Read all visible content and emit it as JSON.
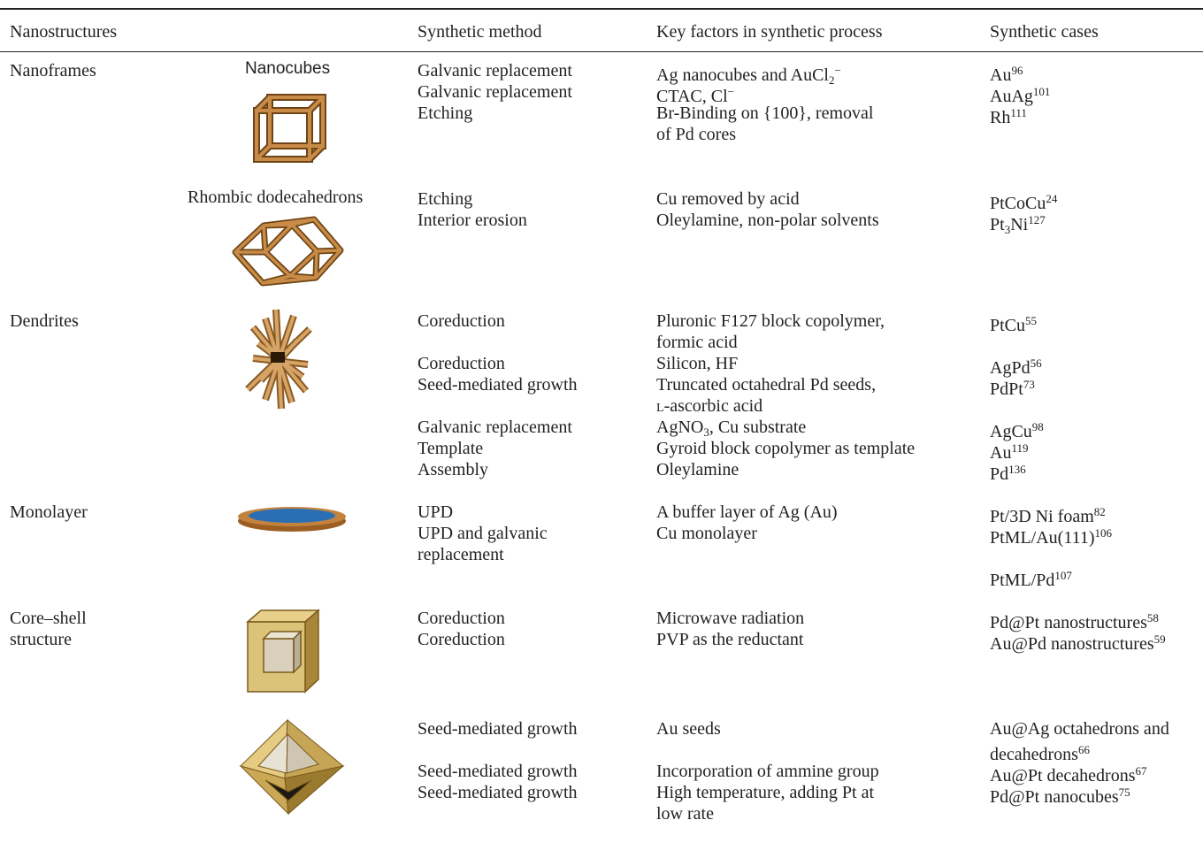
{
  "header": [
    "Nanostructures",
    "Synthetic method",
    "Key factors in synthetic process",
    "Synthetic cases"
  ],
  "sections": [
    [
      "Nanoframes"
    ],
    [
      "Dendrites"
    ],
    [
      "Monolayer"
    ],
    [
      "Core–shell",
      "structure"
    ]
  ],
  "shapes": [
    "Nanocubes",
    "Rhombic dodecahedrons"
  ],
  "rows": [
    {
      "method": [
        [
          "Galvanic replacement"
        ]
      ],
      "factors": [
        [
          "Ag nanocubes and AuCl",
          {
            "sub": "2"
          },
          {
            "sup": "−"
          }
        ]
      ],
      "cases": [
        [
          "Au",
          {
            "sup": "96"
          }
        ]
      ]
    },
    {
      "method": [
        [
          "Galvanic replacement"
        ]
      ],
      "factors": [
        [
          "CTAC, Cl",
          {
            "sup": "−"
          }
        ]
      ],
      "cases": [
        [
          "AuAg",
          {
            "sup": "101"
          }
        ]
      ]
    },
    {
      "method": [
        [
          "Etching"
        ]
      ],
      "factors": [
        [
          "Br-Binding on {100}, removal"
        ],
        [
          "of Pd cores"
        ]
      ],
      "cases": [
        [
          "Rh",
          {
            "sup": "111"
          }
        ]
      ]
    },
    {
      "method": [
        [
          "Etching"
        ]
      ],
      "factors": [
        [
          "Cu removed by acid"
        ]
      ],
      "cases": [
        [
          "PtCoCu",
          {
            "sup": "24"
          }
        ]
      ]
    },
    {
      "method": [
        [
          "Interior erosion"
        ]
      ],
      "factors": [
        [
          "Oleylamine, non-polar solvents"
        ]
      ],
      "cases": [
        [
          "Pt",
          {
            "sub": "3"
          },
          "Ni",
          {
            "sup": "127"
          }
        ]
      ]
    },
    {
      "method": [
        [
          "Coreduction"
        ]
      ],
      "factors": [
        [
          "Pluronic F127 block copolymer,"
        ],
        [
          "formic acid"
        ]
      ],
      "cases": [
        [
          "PtCu",
          {
            "sup": "55"
          }
        ]
      ]
    },
    {
      "method": [
        [
          "Coreduction"
        ]
      ],
      "factors": [
        [
          "Silicon, HF"
        ]
      ],
      "cases": [
        [
          "AgPd",
          {
            "sup": "56"
          }
        ]
      ]
    },
    {
      "method": [
        [
          "Seed-mediated growth"
        ]
      ],
      "factors": [
        [
          "Truncated octahedral Pd seeds,"
        ],
        [
          {
            "sc": "l"
          },
          "-ascorbic acid"
        ]
      ],
      "cases": [
        [
          "PdPt",
          {
            "sup": "73"
          }
        ]
      ]
    },
    {
      "method": [
        [
          "Galvanic replacement"
        ]
      ],
      "factors": [
        [
          "AgNO",
          {
            "sub": "3"
          },
          ", Cu substrate"
        ]
      ],
      "cases": [
        [
          "AgCu",
          {
            "sup": "98"
          }
        ]
      ]
    },
    {
      "method": [
        [
          "Template"
        ]
      ],
      "factors": [
        [
          "Gyroid block copolymer as template"
        ]
      ],
      "cases": [
        [
          "Au",
          {
            "sup": "119"
          }
        ]
      ]
    },
    {
      "method": [
        [
          "Assembly"
        ]
      ],
      "factors": [
        [
          "Oleylamine"
        ]
      ],
      "cases": [
        [
          "Pd",
          {
            "sup": "136"
          }
        ]
      ]
    },
    {
      "method": [
        [
          "UPD"
        ]
      ],
      "factors": [
        [
          "A buffer layer of Ag (Au)"
        ]
      ],
      "cases": [
        [
          "Pt/3D Ni foam",
          {
            "sup": "82"
          }
        ]
      ]
    },
    {
      "method": [
        [
          "UPD and galvanic"
        ],
        [
          "replacement"
        ]
      ],
      "factors": [
        [
          "Cu monolayer"
        ]
      ],
      "cases": [
        [
          "PtML/Au(111)",
          {
            "sup": "106"
          }
        ]
      ]
    },
    {
      "cases": [
        [
          "PtML/Pd",
          {
            "sup": "107"
          }
        ]
      ]
    },
    {
      "method": [
        [
          "Coreduction"
        ]
      ],
      "factors": [
        [
          "Microwave radiation"
        ]
      ],
      "cases": [
        [
          "Pd@Pt nanostructures",
          {
            "sup": "58"
          }
        ]
      ]
    },
    {
      "method": [
        [
          "Coreduction"
        ]
      ],
      "factors": [
        [
          "PVP as the reductant"
        ]
      ],
      "cases": [
        [
          "Au@Pd nanostructures",
          {
            "sup": "59"
          }
        ]
      ]
    },
    {
      "method": [
        [
          "Seed-mediated growth"
        ]
      ],
      "factors": [
        [
          "Au seeds"
        ]
      ],
      "cases": [
        [
          "Au@Ag octahedrons and"
        ],
        [
          "decahedrons",
          {
            "sup": "66"
          }
        ]
      ]
    },
    {
      "method": [
        [
          "Seed-mediated growth"
        ]
      ],
      "factors": [
        [
          "Incorporation of ammine group"
        ]
      ],
      "cases": [
        [
          "Au@Pt decahedrons",
          {
            "sup": "67"
          }
        ]
      ]
    },
    {
      "method": [
        [
          "Seed-mediated growth"
        ]
      ],
      "factors": [
        [
          "High temperature, adding Pt at"
        ],
        [
          "low rate"
        ]
      ],
      "cases": [
        [
          "Pd@Pt nanocubes",
          {
            "sup": "75"
          }
        ]
      ]
    }
  ]
}
